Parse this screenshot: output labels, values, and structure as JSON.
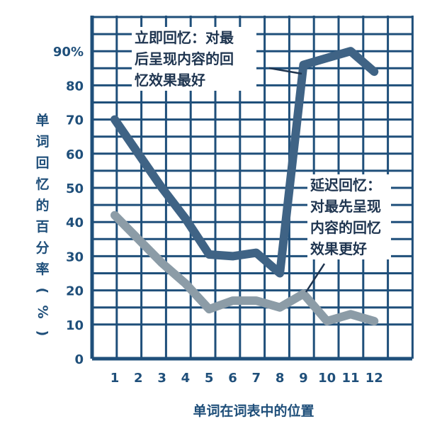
{
  "chart_data": {
    "type": "line",
    "x": [
      1,
      2,
      3,
      4,
      5,
      6,
      7,
      8,
      9,
      10,
      11,
      12
    ],
    "x_tick_labels": [
      "1",
      "2",
      "3",
      "4",
      "5",
      "6",
      "7",
      "8",
      "9",
      "10",
      "11",
      "12"
    ],
    "y_tick_labels": [
      "0",
      "10",
      "20",
      "30",
      "40",
      "50",
      "60",
      "70",
      "80",
      "90%"
    ],
    "ylim": [
      0,
      100
    ],
    "grid": true,
    "xlabel": "单词在词表中的位置",
    "ylabel": "单词回忆的百分率(%)",
    "series": [
      {
        "values": [
          70,
          60,
          50,
          41,
          30.5,
          30,
          31,
          25,
          86,
          88,
          90,
          84
        ],
        "color": "#3f6385"
      },
      {
        "values": [
          42,
          35,
          28,
          22,
          14.5,
          17,
          17,
          15,
          19,
          11,
          13,
          11
        ],
        "color": "#8c9ca7"
      }
    ],
    "annotations": [
      {
        "lines": [
          "立即回忆：对最",
          "后呈现内容的回",
          "忆效果最好"
        ]
      },
      {
        "lines": [
          "延迟回忆：",
          "对最先呈现",
          "内容的回忆",
          "效果更好"
        ]
      }
    ]
  },
  "colors": {
    "grid": "#1f4f7a",
    "text": "#1f4f7a"
  }
}
